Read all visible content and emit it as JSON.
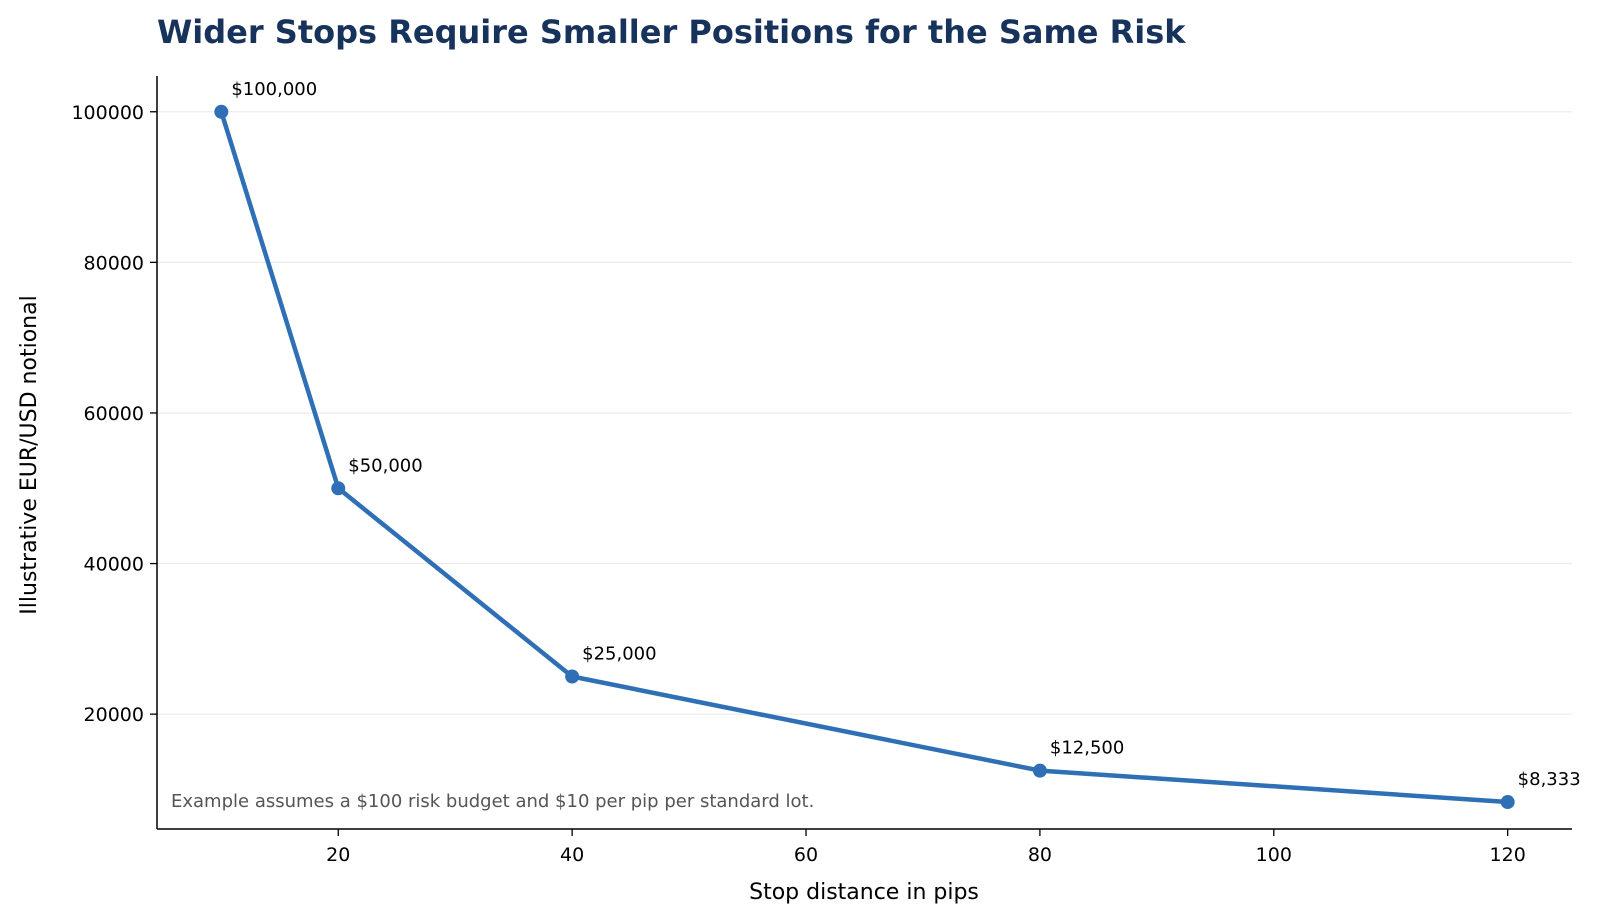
{
  "chart_data": {
    "type": "line",
    "title": "Wider Stops Require Smaller Positions for the Same Risk",
    "xlabel": "Stop distance in pips",
    "ylabel": "Illustrative EUR/USD notional",
    "x": [
      10,
      20,
      40,
      80,
      120
    ],
    "series": [
      {
        "values": [
          100000,
          50000,
          25000,
          12500,
          8333
        ],
        "labels": [
          "$100,000",
          "$50,000",
          "$25,000",
          "$12,500",
          "$8,333"
        ]
      }
    ],
    "xlim": [
      4.5,
      125.5
    ],
    "ylim": [
      4750,
      104750
    ],
    "xticks": [
      20,
      40,
      60,
      80,
      100,
      120
    ],
    "xtick_labels": [
      "20",
      "40",
      "60",
      "80",
      "100",
      "120"
    ],
    "yticks": [
      20000,
      40000,
      60000,
      80000,
      100000
    ],
    "ytick_labels": [
      "20000",
      "40000",
      "60000",
      "80000",
      "100000"
    ],
    "grid": "horizontal",
    "legend": "none",
    "annotation": "Example assumes a $100 risk budget and $10 per pip per standard lot.",
    "colors": {
      "line": "#2e6fb5",
      "title": "#17335c",
      "grid": "#ebebeb",
      "axis": "#000000",
      "note": "#555555"
    }
  }
}
